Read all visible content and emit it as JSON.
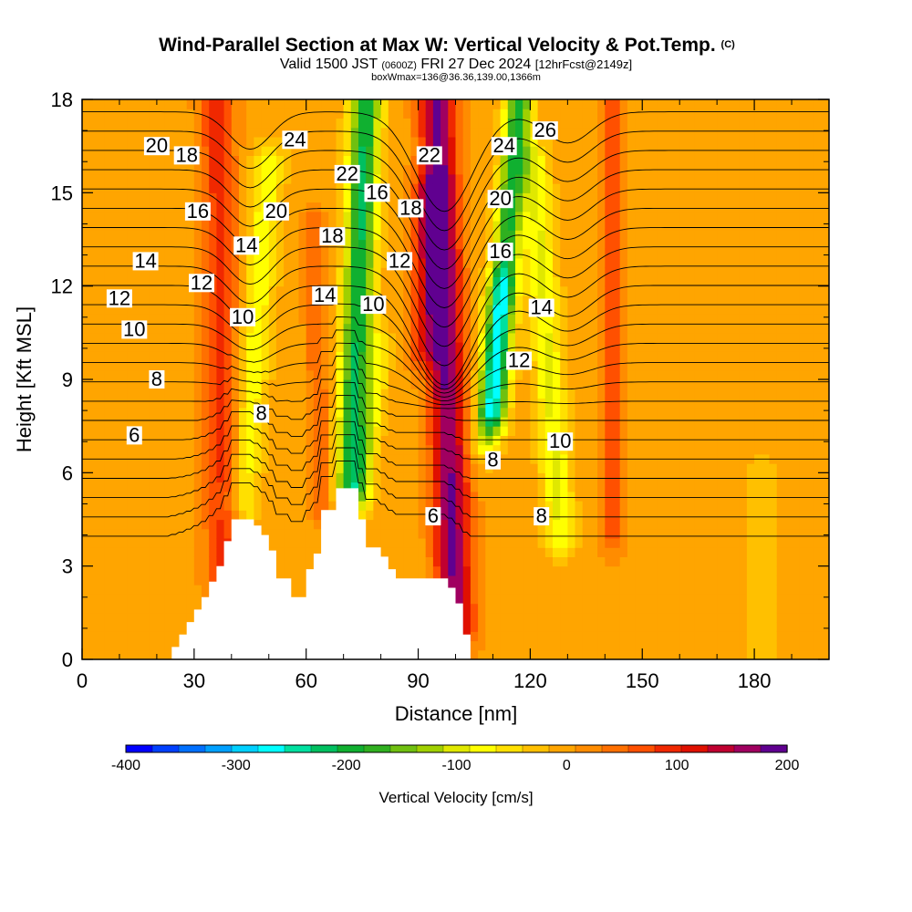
{
  "chart_data": {
    "type": "heatmap",
    "title": "Wind-Parallel Section at Max W: Vertical Velocity & Pot.Temp.",
    "title_tag": "(C)",
    "subtitle_parts": [
      "Valid 1500 JST ",
      "(0600Z)",
      " FRI 27 Dec 2024 ",
      "[12hrFcst@2149z]"
    ],
    "subtitle2": "boxWmax=136@36.36,139.00,1366m",
    "xlabel": "Distance [nm]",
    "ylabel": "Height [Kft MSL]",
    "xlim": [
      0,
      200
    ],
    "ylim": [
      0,
      18
    ],
    "x_ticks": [
      0,
      30,
      60,
      90,
      120,
      150,
      180
    ],
    "y_ticks": [
      0,
      3,
      6,
      9,
      12,
      15,
      18
    ],
    "x_tick_labels": [
      "0",
      "30",
      "60",
      "90",
      "120",
      "150",
      "180"
    ],
    "y_tick_labels": [
      "0",
      "3",
      "6",
      "9",
      "12",
      "15",
      "18"
    ],
    "colorbar": {
      "label": "Vertical Velocity [cm/s]",
      "min": -400,
      "max": 200,
      "step": 25,
      "tick_values": [
        -400,
        -300,
        -200,
        -100,
        0,
        100,
        200
      ],
      "tick_labels": [
        "-400",
        "-300",
        "-200",
        "-100",
        "0",
        "100",
        "200"
      ],
      "colors": [
        "#0000ff",
        "#0040ff",
        "#0070ff",
        "#00a0ff",
        "#00d0ff",
        "#00ffff",
        "#00e0a0",
        "#00c060",
        "#10b030",
        "#30b020",
        "#70c010",
        "#a0d000",
        "#e0e800",
        "#ffff00",
        "#ffe000",
        "#ffc000",
        "#ffa500",
        "#ff8c00",
        "#ff7000",
        "#ff5000",
        "#f02800",
        "#e01000",
        "#c00030",
        "#a00060",
        "#600090"
      ]
    },
    "terrain": {
      "x": [
        0,
        22,
        24,
        26,
        28,
        30,
        32,
        34,
        36,
        38,
        40,
        42,
        44,
        46,
        48,
        50,
        52,
        54,
        56,
        58,
        60,
        62,
        64,
        66,
        68,
        70,
        72,
        74,
        76,
        78,
        80,
        82,
        84,
        86,
        88,
        90,
        92,
        94,
        96,
        98,
        100,
        102,
        104,
        106
      ],
      "z": [
        0,
        0,
        0.4,
        0.8,
        1.2,
        1.6,
        2.0,
        2.5,
        3.0,
        3.8,
        4.5,
        4.5,
        4.5,
        4.3,
        4.0,
        3.5,
        2.6,
        2.6,
        2.0,
        2.0,
        2.9,
        3.4,
        4.8,
        4.8,
        5.5,
        5.5,
        5.5,
        4.5,
        3.6,
        3.6,
        3.3,
        2.9,
        2.6,
        2.6,
        2.6,
        2.6,
        2.6,
        2.6,
        2.6,
        2.3,
        1.8,
        0.8,
        0,
        0
      ]
    },
    "velocity_background": 12,
    "velocity_features": [
      {
        "x0": 38,
        "x1": 36,
        "z0": 2.5,
        "z1": 18,
        "w": 5,
        "peak": 95
      },
      {
        "x0": 43,
        "x1": 50,
        "z0": 5,
        "z1": 16,
        "w": 4,
        "peak": -80
      },
      {
        "x0": 72,
        "x1": 76,
        "z0": 5.5,
        "z1": 18,
        "w": 4,
        "peak": -215
      },
      {
        "x0": 75,
        "x1": 80,
        "z0": 5.5,
        "z1": 10,
        "w": 3,
        "peak": -60
      },
      {
        "x0": 64,
        "x1": 62,
        "z0": 5,
        "z1": 14,
        "w": 3,
        "peak": 60
      },
      {
        "x0": 100,
        "x1": 95,
        "z0": 1,
        "z1": 18,
        "w": 5,
        "peak": 190
      },
      {
        "x0": 92,
        "x1": 93,
        "z0": 10,
        "z1": 15,
        "w": 5,
        "peak": 90
      },
      {
        "x0": 110,
        "x1": 117,
        "z0": 8,
        "z1": 18,
        "w": 3.5,
        "peak": -200
      },
      {
        "x0": 108,
        "x1": 112,
        "z0": 7,
        "z1": 12,
        "w": 4,
        "peak": -90
      },
      {
        "x0": 128,
        "x1": 121,
        "z0": 4,
        "z1": 16,
        "w": 4,
        "peak": -90
      },
      {
        "x0": 142,
        "x1": 142,
        "z0": 4,
        "z1": 18,
        "w": 3,
        "peak": 75
      },
      {
        "x0": 182,
        "x1": 182,
        "z0": 0,
        "z1": 6,
        "w": 6,
        "peak": -20
      }
    ],
    "isentropes": {
      "levels": [
        4,
        5,
        6,
        7,
        8,
        9,
        10,
        11,
        12,
        13,
        14,
        15,
        16,
        17,
        18,
        19,
        20,
        21,
        22,
        23,
        24,
        25,
        26
      ],
      "base_z0": 5.2,
      "kft_per_degree": 0.62,
      "wave_amplitude": -3.2,
      "wave_center_x": 97,
      "wave_width": 11,
      "wave_onset_kft": 8,
      "wave_full_kft": 12
    },
    "contour_labels": [
      {
        "text": "20",
        "x": 20,
        "y": 16.5
      },
      {
        "text": "18",
        "x": 28,
        "y": 16.2
      },
      {
        "text": "16",
        "x": 31,
        "y": 14.4
      },
      {
        "text": "14",
        "x": 17,
        "y": 12.8
      },
      {
        "text": "12",
        "x": 10,
        "y": 11.6
      },
      {
        "text": "10",
        "x": 14,
        "y": 10.6
      },
      {
        "text": "8",
        "x": 20,
        "y": 9.0
      },
      {
        "text": "6",
        "x": 14,
        "y": 7.2
      },
      {
        "text": "12",
        "x": 32,
        "y": 12.1
      },
      {
        "text": "14",
        "x": 44,
        "y": 13.3
      },
      {
        "text": "10",
        "x": 43,
        "y": 11.0
      },
      {
        "text": "24",
        "x": 57,
        "y": 16.7
      },
      {
        "text": "20",
        "x": 52,
        "y": 14.4
      },
      {
        "text": "8",
        "x": 48,
        "y": 7.9
      },
      {
        "text": "22",
        "x": 71,
        "y": 15.6
      },
      {
        "text": "18",
        "x": 67,
        "y": 13.6
      },
      {
        "text": "14",
        "x": 65,
        "y": 11.7
      },
      {
        "text": "16",
        "x": 79,
        "y": 15.0
      },
      {
        "text": "10",
        "x": 78,
        "y": 11.4
      },
      {
        "text": "22",
        "x": 93,
        "y": 16.2
      },
      {
        "text": "18",
        "x": 88,
        "y": 14.5
      },
      {
        "text": "12",
        "x": 85,
        "y": 12.8
      },
      {
        "text": "24",
        "x": 113,
        "y": 16.5
      },
      {
        "text": "20",
        "x": 112,
        "y": 14.8
      },
      {
        "text": "16",
        "x": 112,
        "y": 13.1
      },
      {
        "text": "26",
        "x": 124,
        "y": 17.0
      },
      {
        "text": "14",
        "x": 123,
        "y": 11.3
      },
      {
        "text": "12",
        "x": 117,
        "y": 9.6
      },
      {
        "text": "10",
        "x": 128,
        "y": 7.0
      },
      {
        "text": "8",
        "x": 110,
        "y": 6.4
      },
      {
        "text": "8",
        "x": 123,
        "y": 4.6
      },
      {
        "text": "6",
        "x": 94,
        "y": 4.6
      }
    ]
  }
}
